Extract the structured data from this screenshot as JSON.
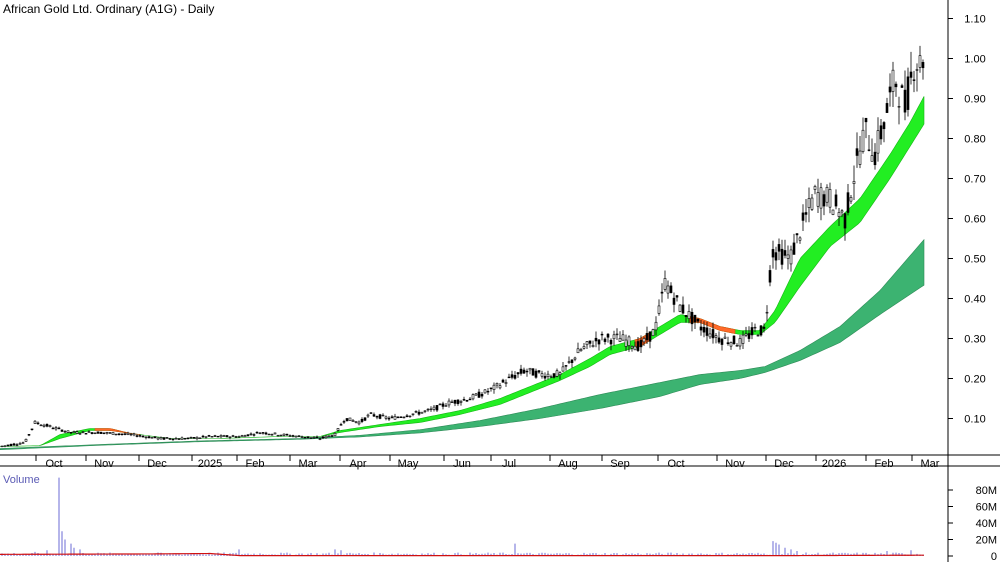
{
  "chart_data": {
    "type": "candlestick",
    "title": "African Gold Ltd. Ordinary (A1G) - Daily",
    "volume_label": "Volume",
    "price_axis": {
      "ticks": [
        0.1,
        0.2,
        0.3,
        0.4,
        0.5,
        0.6,
        0.7,
        0.8,
        0.9,
        1.0,
        1.1
      ],
      "labels": [
        "0.10",
        "0.20",
        "0.30",
        "0.40",
        "0.50",
        "0.60",
        "0.70",
        "0.80",
        "0.90",
        "1.00",
        "1.10"
      ]
    },
    "volume_axis": {
      "ticks": [
        0,
        20,
        40,
        60,
        80
      ],
      "labels": [
        "0",
        "20M",
        "40M",
        "60M",
        "80M"
      ]
    },
    "x_labels": [
      "Oct",
      "Nov",
      "Dec",
      "2025",
      "Feb",
      "Mar",
      "Apr",
      "May",
      "Jun",
      "Jul",
      "Aug",
      "Sep",
      "Oct",
      "Nov",
      "Dec",
      "2026",
      "Feb",
      "Mar"
    ],
    "price_close_anchors": [
      [
        0,
        0.03
      ],
      [
        25,
        0.04
      ],
      [
        35,
        0.09
      ],
      [
        50,
        0.08
      ],
      [
        70,
        0.065
      ],
      [
        100,
        0.065
      ],
      [
        130,
        0.06
      ],
      [
        160,
        0.05
      ],
      [
        190,
        0.05
      ],
      [
        210,
        0.055
      ],
      [
        240,
        0.055
      ],
      [
        260,
        0.065
      ],
      [
        280,
        0.06
      ],
      [
        300,
        0.055
      ],
      [
        320,
        0.05
      ],
      [
        335,
        0.06
      ],
      [
        345,
        0.1
      ],
      [
        360,
        0.09
      ],
      [
        370,
        0.11
      ],
      [
        390,
        0.1
      ],
      [
        410,
        0.11
      ],
      [
        430,
        0.12
      ],
      [
        450,
        0.14
      ],
      [
        470,
        0.15
      ],
      [
        490,
        0.17
      ],
      [
        510,
        0.2
      ],
      [
        525,
        0.22
      ],
      [
        540,
        0.21
      ],
      [
        560,
        0.21
      ],
      [
        580,
        0.27
      ],
      [
        600,
        0.3
      ],
      [
        620,
        0.3
      ],
      [
        640,
        0.28
      ],
      [
        655,
        0.32
      ],
      [
        665,
        0.44
      ],
      [
        680,
        0.38
      ],
      [
        700,
        0.33
      ],
      [
        720,
        0.3
      ],
      [
        740,
        0.29
      ],
      [
        755,
        0.32
      ],
      [
        765,
        0.32
      ],
      [
        772,
        0.52
      ],
      [
        790,
        0.5
      ],
      [
        805,
        0.6
      ],
      [
        815,
        0.66
      ],
      [
        830,
        0.65
      ],
      [
        845,
        0.6
      ],
      [
        855,
        0.72
      ],
      [
        865,
        0.82
      ],
      [
        875,
        0.76
      ],
      [
        885,
        0.85
      ],
      [
        895,
        0.95
      ],
      [
        905,
        0.88
      ],
      [
        915,
        1.0
      ],
      [
        922,
        0.98
      ],
      [
        925,
        1.06
      ]
    ],
    "ema_short_band": [
      [
        0,
        0.03,
        0.03
      ],
      [
        40,
        0.032,
        0.032
      ],
      [
        60,
        0.06,
        0.05
      ],
      [
        90,
        0.075,
        0.07
      ],
      [
        110,
        0.075,
        0.07
      ],
      [
        130,
        0.063,
        0.063
      ],
      [
        170,
        0.05,
        0.05
      ],
      [
        220,
        0.05,
        0.05
      ],
      [
        280,
        0.055,
        0.055
      ],
      [
        320,
        0.055,
        0.055
      ],
      [
        340,
        0.07,
        0.065
      ],
      [
        380,
        0.085,
        0.08
      ],
      [
        420,
        0.1,
        0.09
      ],
      [
        460,
        0.12,
        0.11
      ],
      [
        500,
        0.15,
        0.135
      ],
      [
        530,
        0.18,
        0.165
      ],
      [
        560,
        0.21,
        0.195
      ],
      [
        590,
        0.25,
        0.23
      ],
      [
        610,
        0.28,
        0.26
      ],
      [
        640,
        0.3,
        0.28
      ],
      [
        660,
        0.33,
        0.31
      ],
      [
        680,
        0.36,
        0.34
      ],
      [
        700,
        0.35,
        0.34
      ],
      [
        720,
        0.33,
        0.32
      ],
      [
        740,
        0.32,
        0.31
      ],
      [
        760,
        0.32,
        0.31
      ],
      [
        775,
        0.37,
        0.34
      ],
      [
        800,
        0.5,
        0.43
      ],
      [
        830,
        0.58,
        0.53
      ],
      [
        860,
        0.65,
        0.59
      ],
      [
        890,
        0.76,
        0.7
      ],
      [
        910,
        0.84,
        0.78
      ],
      [
        925,
        0.91,
        0.84
      ]
    ],
    "ema_long_band": [
      [
        0,
        0.025,
        0.022
      ],
      [
        100,
        0.035,
        0.033
      ],
      [
        200,
        0.044,
        0.042
      ],
      [
        300,
        0.05,
        0.048
      ],
      [
        360,
        0.058,
        0.054
      ],
      [
        420,
        0.072,
        0.064
      ],
      [
        480,
        0.095,
        0.08
      ],
      [
        540,
        0.125,
        0.1
      ],
      [
        600,
        0.16,
        0.125
      ],
      [
        660,
        0.19,
        0.155
      ],
      [
        700,
        0.21,
        0.185
      ],
      [
        740,
        0.22,
        0.2
      ],
      [
        765,
        0.23,
        0.215
      ],
      [
        800,
        0.27,
        0.245
      ],
      [
        840,
        0.33,
        0.29
      ],
      [
        880,
        0.42,
        0.36
      ],
      [
        925,
        0.55,
        0.435
      ]
    ],
    "orange_segments": [
      [
        95,
        140
      ],
      [
        635,
        650
      ],
      [
        690,
        735
      ]
    ],
    "volume_spikes": [
      [
        60,
        95
      ],
      [
        62,
        30
      ],
      [
        66,
        20
      ],
      [
        70,
        15
      ],
      [
        75,
        10
      ],
      [
        80,
        8
      ],
      [
        35,
        5
      ],
      [
        48,
        7
      ],
      [
        240,
        8
      ],
      [
        335,
        8
      ],
      [
        340,
        7
      ],
      [
        516,
        15
      ],
      [
        772,
        18
      ],
      [
        776,
        16
      ],
      [
        780,
        14
      ],
      [
        785,
        10
      ],
      [
        790,
        8
      ],
      [
        796,
        6
      ],
      [
        888,
        6
      ],
      [
        912,
        7
      ]
    ],
    "volume_base": 3,
    "volume_ma_anchors": [
      [
        0,
        2
      ],
      [
        150,
        2.5
      ],
      [
        210,
        3
      ],
      [
        240,
        0.5
      ],
      [
        300,
        0.5
      ],
      [
        500,
        0.5
      ],
      [
        800,
        0.5
      ],
      [
        925,
        1
      ]
    ]
  }
}
